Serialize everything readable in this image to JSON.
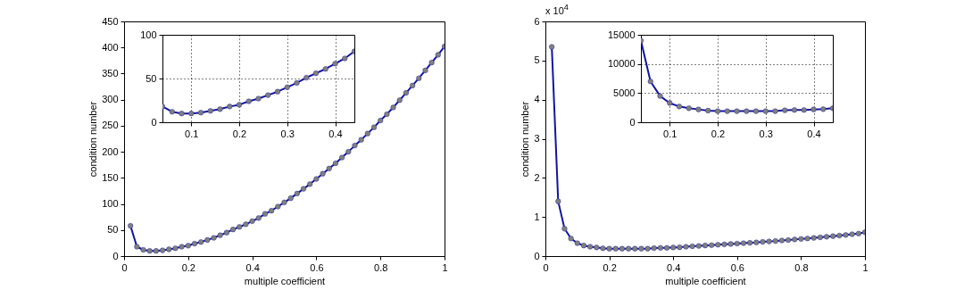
{
  "chart_data": [
    {
      "type": "line",
      "xlabel": "multiple coefficient",
      "ylabel": "condition number",
      "xlim": [
        0,
        1
      ],
      "xticks": [
        0,
        0.2,
        0.4,
        0.6,
        0.8,
        1
      ],
      "ylim": [
        0,
        450
      ],
      "yticks": [
        0,
        50,
        100,
        150,
        200,
        250,
        300,
        350,
        400,
        450
      ],
      "grid": false,
      "marker": "circle",
      "x": [
        0.02,
        0.04,
        0.06,
        0.08,
        0.1,
        0.12,
        0.14,
        0.16,
        0.18,
        0.2,
        0.22,
        0.24,
        0.26,
        0.28,
        0.3,
        0.32,
        0.34,
        0.36,
        0.38,
        0.4,
        0.42,
        0.44,
        0.46,
        0.48,
        0.5,
        0.52,
        0.54,
        0.56,
        0.58,
        0.6,
        0.62,
        0.64,
        0.66,
        0.68,
        0.7,
        0.72,
        0.74,
        0.76,
        0.78,
        0.8,
        0.82,
        0.84,
        0.86,
        0.88,
        0.9,
        0.92,
        0.94,
        0.96,
        0.98,
        1
      ],
      "series": [
        {
          "color": "#1414a0",
          "values": [
            58,
            18,
            12,
            10,
            10,
            11,
            13,
            15,
            18,
            20,
            24,
            27,
            31,
            35,
            40,
            45,
            51,
            56,
            61,
            67,
            73,
            81,
            87,
            95,
            103,
            111,
            120,
            129,
            138,
            148,
            158,
            168,
            178,
            189,
            200,
            212,
            223,
            235,
            247,
            260,
            272,
            285,
            299,
            313,
            327,
            341,
            356,
            371,
            386,
            402
          ]
        }
      ]
    },
    {
      "type": "line",
      "xlim": [
        0.04,
        0.44
      ],
      "xticks": [
        0.1,
        0.2,
        0.3,
        0.4
      ],
      "ylim": [
        0,
        100
      ],
      "yticks": [
        0,
        50,
        100
      ],
      "grid": true,
      "marker": "circle",
      "x": [
        0.04,
        0.06,
        0.08,
        0.1,
        0.12,
        0.14,
        0.16,
        0.18,
        0.2,
        0.22,
        0.24,
        0.26,
        0.28,
        0.3,
        0.32,
        0.34,
        0.36,
        0.38,
        0.4,
        0.42,
        0.44
      ],
      "series": [
        {
          "color": "#1414a0",
          "values": [
            18,
            12,
            10,
            10,
            11,
            13,
            15,
            18,
            20,
            24,
            27,
            31,
            35,
            40,
            45,
            51,
            56,
            61,
            67,
            73,
            81
          ]
        }
      ]
    },
    {
      "type": "line",
      "xlabel": "multiple coefficient",
      "ylabel": "condition number",
      "annotations": [
        "x 10$^{4}$"
      ],
      "xlim": [
        0,
        1
      ],
      "xticks": [
        0,
        0.2,
        0.4,
        0.6,
        0.8,
        1
      ],
      "ylim": [
        0,
        6
      ],
      "yticks": [
        0,
        1,
        2,
        3,
        4,
        5,
        6
      ],
      "grid": false,
      "marker": "circle",
      "x": [
        0.02,
        0.04,
        0.06,
        0.08,
        0.1,
        0.12,
        0.14,
        0.16,
        0.18,
        0.2,
        0.22,
        0.24,
        0.26,
        0.28,
        0.3,
        0.32,
        0.34,
        0.36,
        0.38,
        0.4,
        0.42,
        0.44,
        0.46,
        0.48,
        0.5,
        0.52,
        0.54,
        0.56,
        0.58,
        0.6,
        0.62,
        0.64,
        0.66,
        0.68,
        0.7,
        0.72,
        0.74,
        0.76,
        0.78,
        0.8,
        0.82,
        0.84,
        0.86,
        0.88,
        0.9,
        0.92,
        0.94,
        0.96,
        0.98,
        1
      ],
      "series": [
        {
          "color": "#1414a0",
          "values": [
            5.35,
            1.4,
            0.7,
            0.45,
            0.33,
            0.27,
            0.24,
            0.22,
            0.2,
            0.19,
            0.19,
            0.19,
            0.19,
            0.19,
            0.19,
            0.19,
            0.205,
            0.21,
            0.21,
            0.22,
            0.225,
            0.24,
            0.25,
            0.26,
            0.27,
            0.28,
            0.29,
            0.3,
            0.31,
            0.32,
            0.33,
            0.34,
            0.35,
            0.365,
            0.375,
            0.385,
            0.4,
            0.41,
            0.425,
            0.44,
            0.45,
            0.465,
            0.48,
            0.495,
            0.51,
            0.525,
            0.54,
            0.56,
            0.575,
            0.61
          ]
        }
      ]
    },
    {
      "type": "line",
      "xlim": [
        0.04,
        0.44
      ],
      "xticks": [
        0.1,
        0.2,
        0.3,
        0.4
      ],
      "ylim": [
        0,
        15000
      ],
      "yticks": [
        0,
        5000,
        10000,
        15000
      ],
      "grid": true,
      "marker": "circle",
      "x": [
        0.04,
        0.06,
        0.08,
        0.1,
        0.12,
        0.14,
        0.16,
        0.18,
        0.2,
        0.22,
        0.24,
        0.26,
        0.28,
        0.3,
        0.32,
        0.34,
        0.36,
        0.38,
        0.4,
        0.42,
        0.44
      ],
      "series": [
        {
          "color": "#1414a0",
          "values": [
            14000,
            7000,
            4500,
            3300,
            2700,
            2400,
            2200,
            2000,
            1900,
            1900,
            1900,
            1900,
            1900,
            1900,
            1900,
            2050,
            2100,
            2100,
            2200,
            2250,
            2400
          ]
        }
      ]
    }
  ]
}
